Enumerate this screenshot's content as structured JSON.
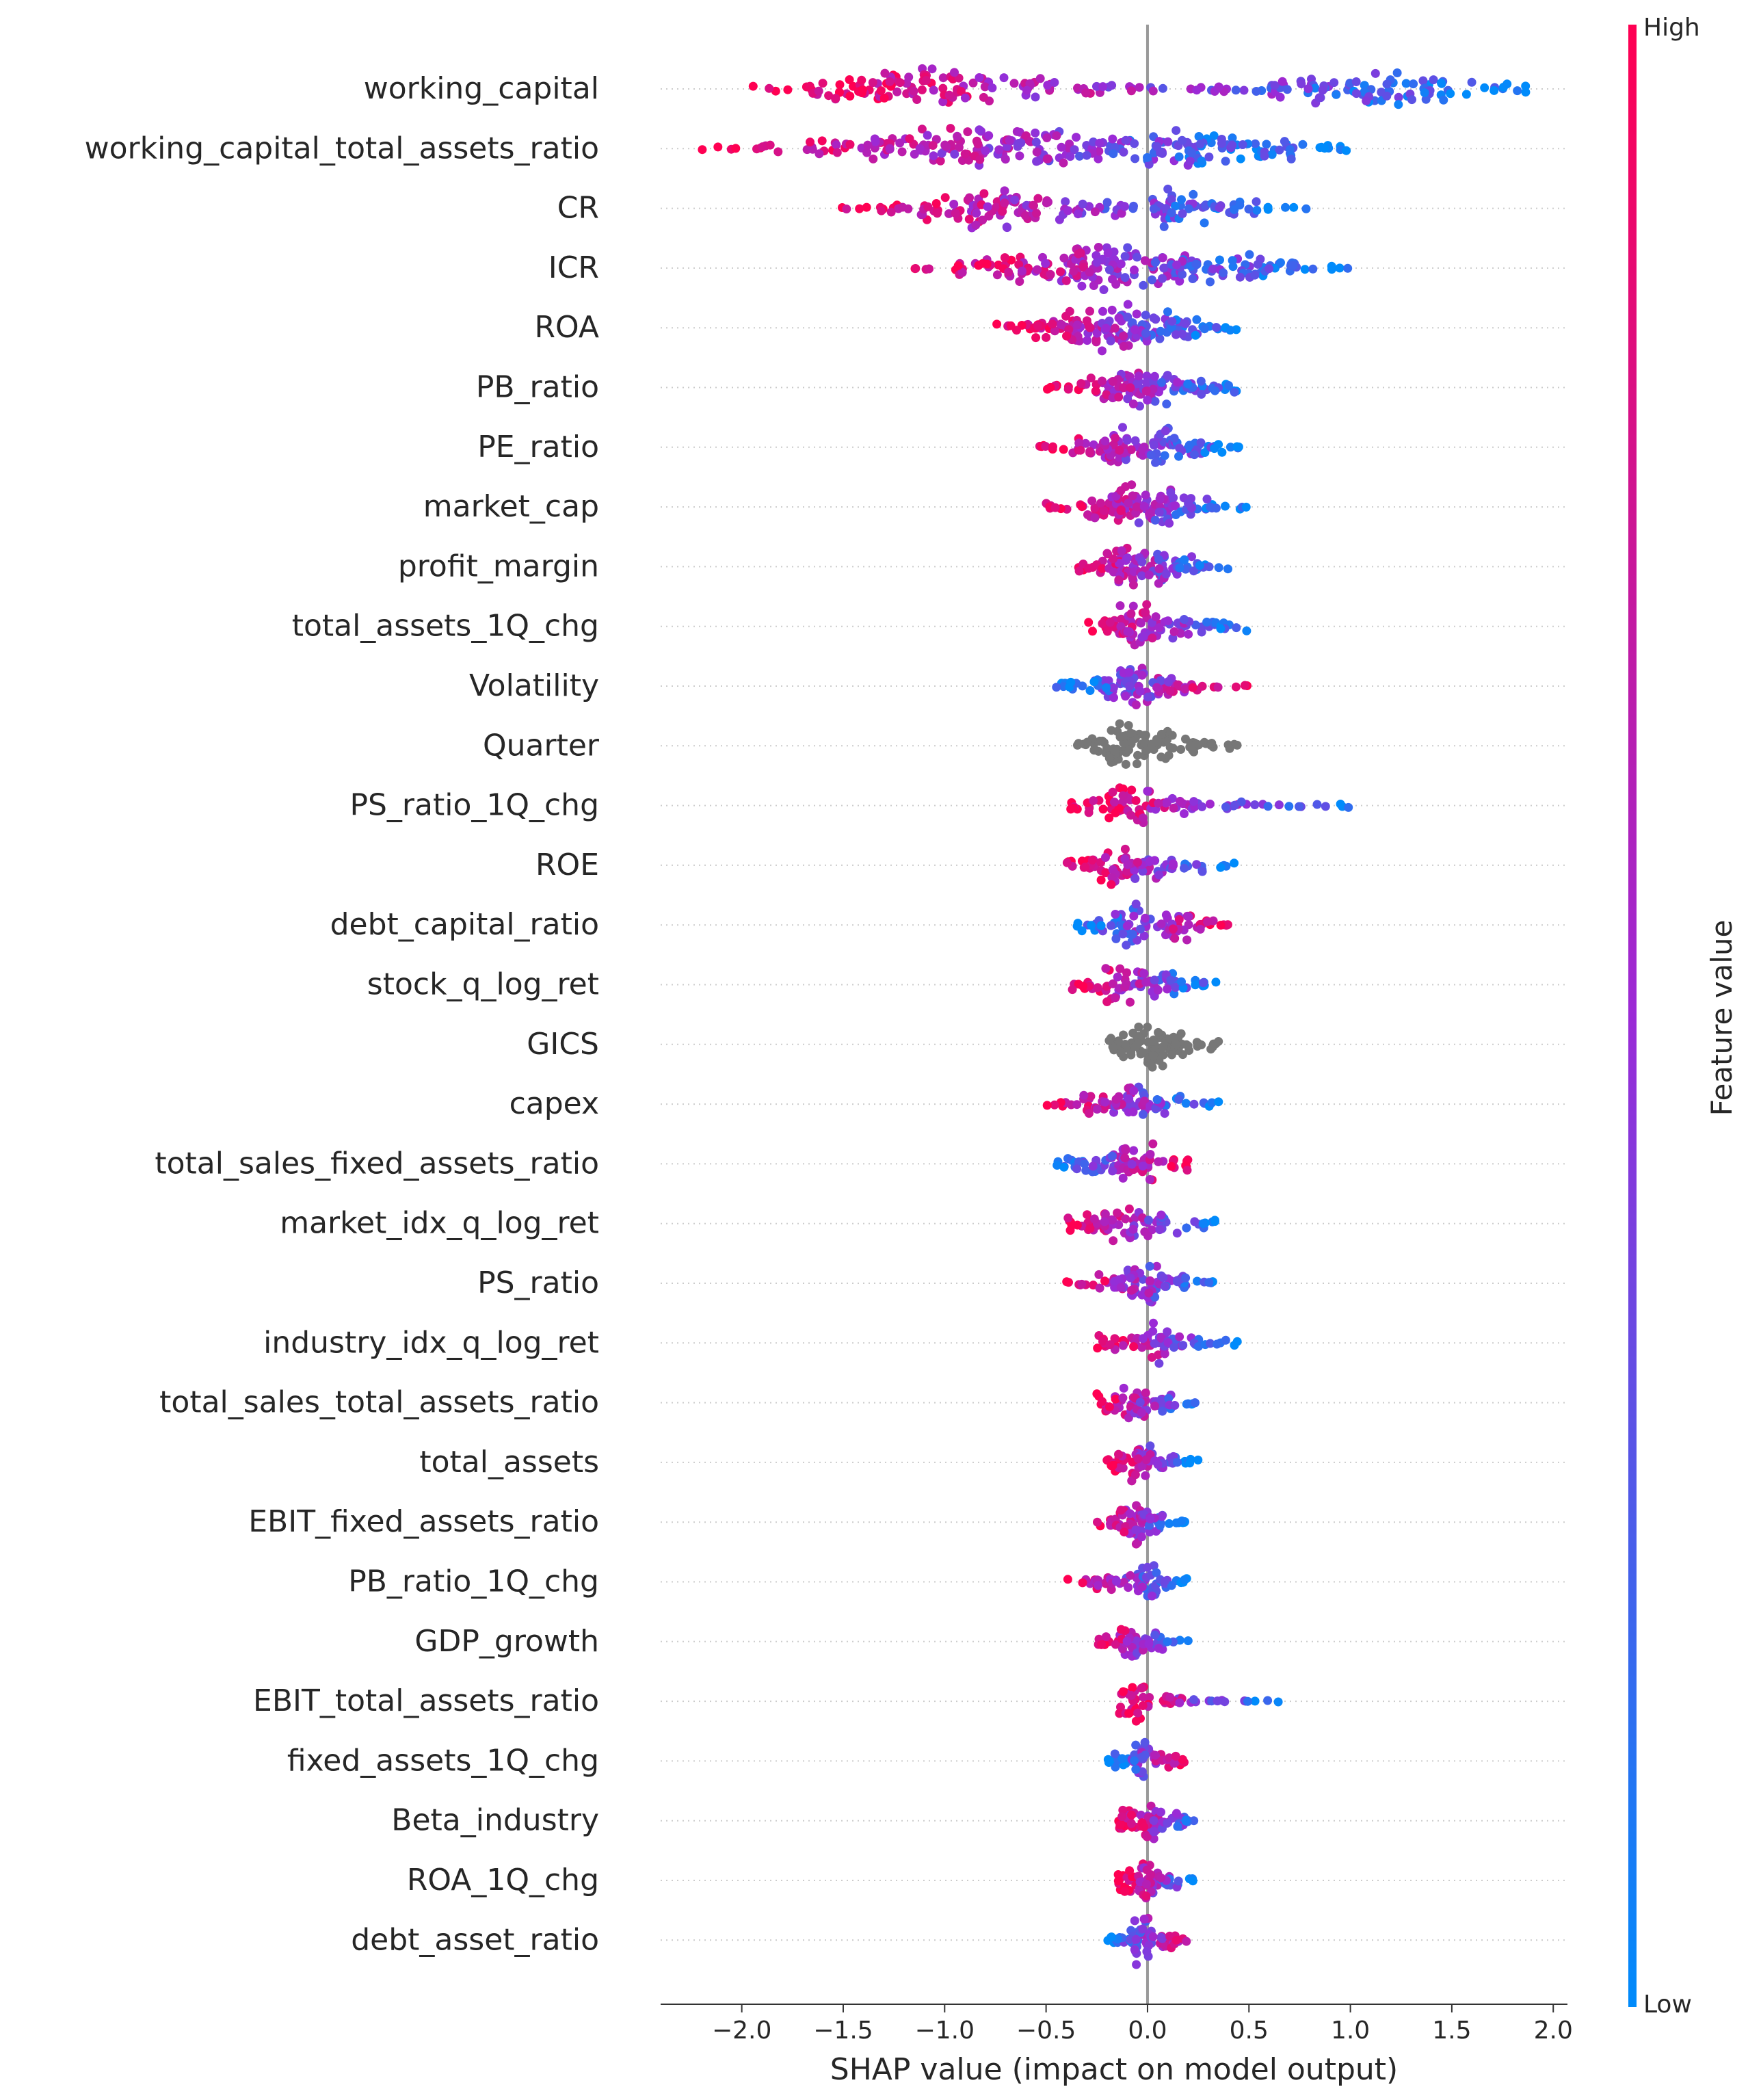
{
  "chart_data": {
    "type": "scatter",
    "subtype": "shap-beeswarm",
    "title": "",
    "xlabel": "SHAP value (impact on model output)",
    "ylabel": "",
    "xlim": [
      -2.4,
      2.07
    ],
    "xticks": [
      -2.0,
      -1.5,
      -1.0,
      -0.5,
      0.0,
      0.5,
      1.0,
      1.5,
      2.0
    ],
    "xtick_labels": [
      "−2.0",
      "−1.5",
      "−1.0",
      "−0.5",
      "0.0",
      "0.5",
      "1.0",
      "1.5",
      "2.0"
    ],
    "grid": false,
    "colorbar": {
      "label": "Feature value",
      "high_label": "High",
      "low_label": "Low",
      "high_color": "#ff0052",
      "low_color": "#008bfb"
    },
    "features": [
      {
        "name": "working_capital",
        "min": -1.95,
        "max": 1.9,
        "mode": -1.15,
        "neutral": false,
        "hi_side": "neg",
        "density": [
          0.15,
          0.55,
          1.0,
          0.75,
          0.45,
          0.3,
          0.15,
          0.2,
          0.35,
          0.6,
          0.8,
          0.55,
          0.2
        ]
      },
      {
        "name": "working_capital_total_assets_ratio",
        "min": -2.2,
        "max": 1.0,
        "mode": -0.6,
        "neutral": false,
        "hi_side": "neg",
        "density": [
          0.05,
          0.15,
          0.35,
          0.6,
          0.85,
          1.0,
          0.8,
          0.55,
          0.75,
          0.95,
          0.6,
          0.2
        ]
      },
      {
        "name": "CR",
        "min": -1.6,
        "max": 0.8,
        "mode": -0.8,
        "neutral": false,
        "hi_side": "neg",
        "density": [
          0.05,
          0.2,
          0.55,
          1.0,
          0.6,
          0.3,
          0.45,
          0.85,
          0.4,
          0.1
        ]
      },
      {
        "name": "ICR",
        "min": -1.15,
        "max": 1.0,
        "mode": -0.3,
        "neutral": false,
        "hi_side": "neg",
        "density": [
          0.1,
          0.35,
          0.6,
          0.9,
          1.0,
          0.7,
          0.65,
          0.6,
          0.35,
          0.1
        ]
      },
      {
        "name": "ROA",
        "min": -0.75,
        "max": 0.45,
        "mode": -0.15,
        "neutral": false,
        "hi_side": "neg",
        "density": [
          0.2,
          0.5,
          0.85,
          1.0,
          0.8,
          0.45,
          0.2
        ]
      },
      {
        "name": "PB_ratio",
        "min": -0.5,
        "max": 0.45,
        "mode": -0.1,
        "neutral": false,
        "hi_side": "neg",
        "density": [
          0.15,
          0.45,
          0.95,
          0.7,
          0.45,
          0.25
        ]
      },
      {
        "name": "PE_ratio",
        "min": -0.55,
        "max": 0.45,
        "mode": -0.1,
        "neutral": false,
        "hi_side": "neg",
        "density": [
          0.15,
          0.4,
          0.9,
          0.8,
          0.5,
          0.25
        ]
      },
      {
        "name": "market_cap",
        "min": -0.5,
        "max": 0.5,
        "mode": 0.0,
        "neutral": false,
        "hi_side": "neg",
        "density": [
          0.15,
          0.5,
          1.0,
          0.85,
          0.35,
          0.1
        ]
      },
      {
        "name": "profit_margin",
        "min": -0.35,
        "max": 0.4,
        "mode": -0.15,
        "neutral": false,
        "hi_side": "neg",
        "density": [
          0.3,
          1.0,
          0.7,
          0.4,
          0.15
        ]
      },
      {
        "name": "total_assets_1Q_chg",
        "min": -0.3,
        "max": 0.5,
        "mode": -0.05,
        "neutral": false,
        "hi_side": "neg",
        "density": [
          0.35,
          0.9,
          0.6,
          0.35,
          0.2
        ]
      },
      {
        "name": "Volatility",
        "min": -0.45,
        "max": 0.5,
        "mode": -0.05,
        "neutral": false,
        "hi_side": "pos",
        "density": [
          0.2,
          0.55,
          1.0,
          0.5,
          0.2,
          0.05
        ]
      },
      {
        "name": "Quarter",
        "min": -0.35,
        "max": 0.45,
        "mode": -0.1,
        "neutral": true,
        "hi_side": "neg",
        "density": [
          0.4,
          1.0,
          0.7,
          0.35,
          0.15
        ]
      },
      {
        "name": "PS_ratio_1Q_chg",
        "min": -0.4,
        "max": 1.05,
        "mode": -0.05,
        "neutral": false,
        "hi_side": "neg",
        "density": [
          0.3,
          0.9,
          0.45,
          0.2,
          0.15,
          0.1,
          0.05
        ]
      },
      {
        "name": "ROE",
        "min": -0.4,
        "max": 0.45,
        "mode": 0.0,
        "neutral": false,
        "hi_side": "neg",
        "density": [
          0.35,
          0.8,
          0.6,
          0.3,
          0.1
        ]
      },
      {
        "name": "debt_capital_ratio",
        "min": -0.35,
        "max": 0.4,
        "mode": 0.0,
        "neutral": false,
        "hi_side": "pos",
        "density": [
          0.35,
          0.85,
          0.65,
          0.3
        ]
      },
      {
        "name": "stock_q_log_ret",
        "min": -0.4,
        "max": 0.35,
        "mode": 0.0,
        "neutral": false,
        "hi_side": "neg",
        "density": [
          0.3,
          0.8,
          0.6,
          0.25
        ]
      },
      {
        "name": "GICS",
        "min": -0.2,
        "max": 0.35,
        "mode": -0.05,
        "neutral": true,
        "hi_side": "neg",
        "density": [
          0.5,
          1.0,
          0.55,
          0.2
        ]
      },
      {
        "name": "capex",
        "min": -0.5,
        "max": 0.35,
        "mode": 0.0,
        "neutral": false,
        "hi_side": "neg",
        "density": [
          0.15,
          0.5,
          0.85,
          0.45,
          0.15
        ]
      },
      {
        "name": "total_sales_fixed_assets_ratio",
        "min": -0.45,
        "max": 0.2,
        "mode": 0.0,
        "neutral": false,
        "hi_side": "pos",
        "density": [
          0.35,
          0.6,
          0.8,
          0.25
        ]
      },
      {
        "name": "market_idx_q_log_ret",
        "min": -0.4,
        "max": 0.35,
        "mode": 0.0,
        "neutral": false,
        "hi_side": "neg",
        "density": [
          0.5,
          0.8,
          0.55,
          0.2
        ]
      },
      {
        "name": "PS_ratio",
        "min": -0.4,
        "max": 0.35,
        "mode": -0.05,
        "neutral": false,
        "hi_side": "neg",
        "density": [
          0.15,
          0.4,
          0.85,
          0.45,
          0.15
        ]
      },
      {
        "name": "industry_idx_q_log_ret",
        "min": -0.25,
        "max": 0.45,
        "mode": 0.0,
        "neutral": false,
        "hi_side": "neg",
        "density": [
          0.4,
          0.8,
          0.35,
          0.15
        ]
      },
      {
        "name": "total_sales_total_assets_ratio",
        "min": -0.25,
        "max": 0.25,
        "mode": 0.0,
        "neutral": false,
        "hi_side": "neg",
        "density": [
          0.4,
          0.8,
          0.4,
          0.15
        ]
      },
      {
        "name": "total_assets",
        "min": -0.2,
        "max": 0.25,
        "mode": -0.05,
        "neutral": false,
        "hi_side": "neg",
        "density": [
          0.45,
          0.85,
          0.4,
          0.15
        ]
      },
      {
        "name": "EBIT_fixed_assets_ratio",
        "min": -0.25,
        "max": 0.2,
        "mode": -0.05,
        "neutral": false,
        "hi_side": "neg",
        "density": [
          0.3,
          1.0,
          0.5,
          0.15
        ]
      },
      {
        "name": "PB_ratio_1Q_chg",
        "min": -0.4,
        "max": 0.2,
        "mode": 0.0,
        "neutral": false,
        "hi_side": "neg",
        "density": [
          0.15,
          0.4,
          0.8,
          0.3
        ]
      },
      {
        "name": "GDP_growth",
        "min": -0.25,
        "max": 0.2,
        "mode": 0.0,
        "neutral": false,
        "hi_side": "neg",
        "density": [
          0.3,
          0.8,
          0.4,
          0.1
        ]
      },
      {
        "name": "EBIT_total_assets_ratio",
        "min": -0.15,
        "max": 0.65,
        "mode": 0.0,
        "neutral": false,
        "hi_side": "neg",
        "density": [
          0.9,
          0.25,
          0.1,
          0.08,
          0.05
        ]
      },
      {
        "name": "fixed_assets_1Q_chg",
        "min": -0.2,
        "max": 0.2,
        "mode": 0.0,
        "neutral": false,
        "hi_side": "pos",
        "density": [
          0.35,
          0.85,
          0.35
        ]
      },
      {
        "name": "Beta_industry",
        "min": -0.15,
        "max": 0.3,
        "mode": 0.0,
        "neutral": false,
        "hi_side": "neg",
        "density": [
          0.5,
          0.8,
          0.35,
          0.1
        ]
      },
      {
        "name": "ROA_1Q_chg",
        "min": -0.15,
        "max": 0.25,
        "mode": 0.0,
        "neutral": false,
        "hi_side": "neg",
        "density": [
          0.5,
          0.8,
          0.35,
          0.1
        ]
      },
      {
        "name": "debt_asset_ratio",
        "min": -0.2,
        "max": 0.25,
        "mode": 0.0,
        "neutral": false,
        "hi_side": "pos",
        "density": [
          0.3,
          1.0,
          0.4,
          0.1
        ]
      }
    ]
  }
}
